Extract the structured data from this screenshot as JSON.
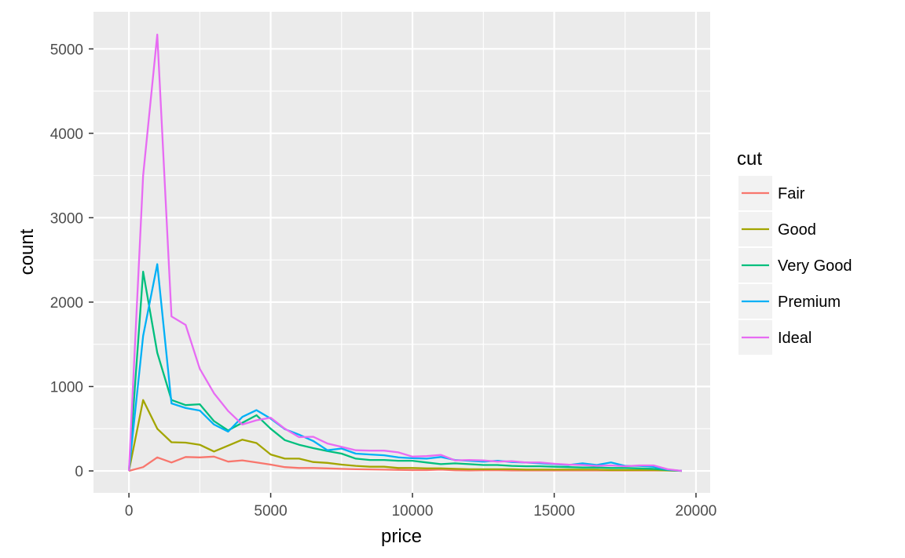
{
  "chart_data": {
    "type": "line",
    "xlabel": "price",
    "ylabel": "count",
    "xlim": [
      -1250,
      20500
    ],
    "ylim": [
      -260,
      5440
    ],
    "x_ticks": [
      0,
      5000,
      10000,
      15000,
      20000
    ],
    "x_tick_labels": [
      "0",
      "5000",
      "10000",
      "15000",
      "20000"
    ],
    "y_ticks": [
      0,
      1000,
      2000,
      3000,
      4000,
      5000
    ],
    "y_tick_labels": [
      "0",
      "1000",
      "2000",
      "3000",
      "4000",
      "5000"
    ],
    "grid": true,
    "legend_position": "right",
    "legend_title": "cut",
    "x": [
      0,
      500,
      1000,
      1500,
      2000,
      2500,
      3000,
      3500,
      4000,
      4500,
      5000,
      5500,
      6000,
      6500,
      7000,
      7500,
      8000,
      8500,
      9000,
      9500,
      10000,
      10500,
      11000,
      11500,
      12000,
      12500,
      13000,
      13500,
      14000,
      14500,
      15000,
      15500,
      16000,
      16500,
      17000,
      17500,
      18000,
      18500,
      19000,
      19500
    ],
    "series": [
      {
        "name": "Fair",
        "color": "#F8766D",
        "values": [
          0,
          45,
          160,
          100,
          165,
          160,
          170,
          110,
          125,
          100,
          75,
          45,
          35,
          35,
          30,
          25,
          20,
          18,
          15,
          12,
          10,
          10,
          15,
          8,
          5,
          8,
          8,
          5,
          5,
          5,
          5,
          5,
          5,
          5,
          5,
          5,
          5,
          5,
          5,
          0
        ]
      },
      {
        "name": "Good",
        "color": "#A3A500",
        "values": [
          0,
          840,
          500,
          340,
          335,
          310,
          230,
          300,
          370,
          330,
          195,
          145,
          145,
          105,
          95,
          75,
          60,
          50,
          50,
          35,
          35,
          30,
          30,
          25,
          20,
          20,
          20,
          20,
          15,
          15,
          15,
          15,
          15,
          15,
          10,
          10,
          10,
          10,
          5,
          0
        ]
      },
      {
        "name": "Very Good",
        "color": "#00BF7D",
        "values": [
          0,
          2360,
          1400,
          840,
          780,
          790,
          590,
          480,
          570,
          660,
          500,
          365,
          310,
          270,
          235,
          205,
          145,
          130,
          130,
          120,
          120,
          100,
          80,
          90,
          80,
          70,
          70,
          60,
          55,
          55,
          50,
          45,
          40,
          40,
          35,
          35,
          30,
          25,
          10,
          0
        ]
      },
      {
        "name": "Premium",
        "color": "#00B0F6",
        "values": [
          0,
          1600,
          2450,
          800,
          745,
          715,
          550,
          465,
          640,
          720,
          620,
          495,
          430,
          355,
          245,
          265,
          205,
          195,
          185,
          160,
          150,
          145,
          165,
          130,
          120,
          110,
          120,
          105,
          100,
          90,
          80,
          70,
          90,
          70,
          100,
          60,
          60,
          50,
          15,
          0
        ]
      },
      {
        "name": "Ideal",
        "color": "#E76BF3",
        "values": [
          0,
          3500,
          5170,
          1830,
          1730,
          1210,
          920,
          710,
          550,
          600,
          630,
          500,
          400,
          405,
          325,
          285,
          245,
          240,
          240,
          220,
          170,
          175,
          190,
          125,
          130,
          125,
          110,
          115,
          100,
          100,
          85,
          75,
          70,
          60,
          65,
          55,
          65,
          65,
          20,
          0
        ]
      }
    ]
  }
}
